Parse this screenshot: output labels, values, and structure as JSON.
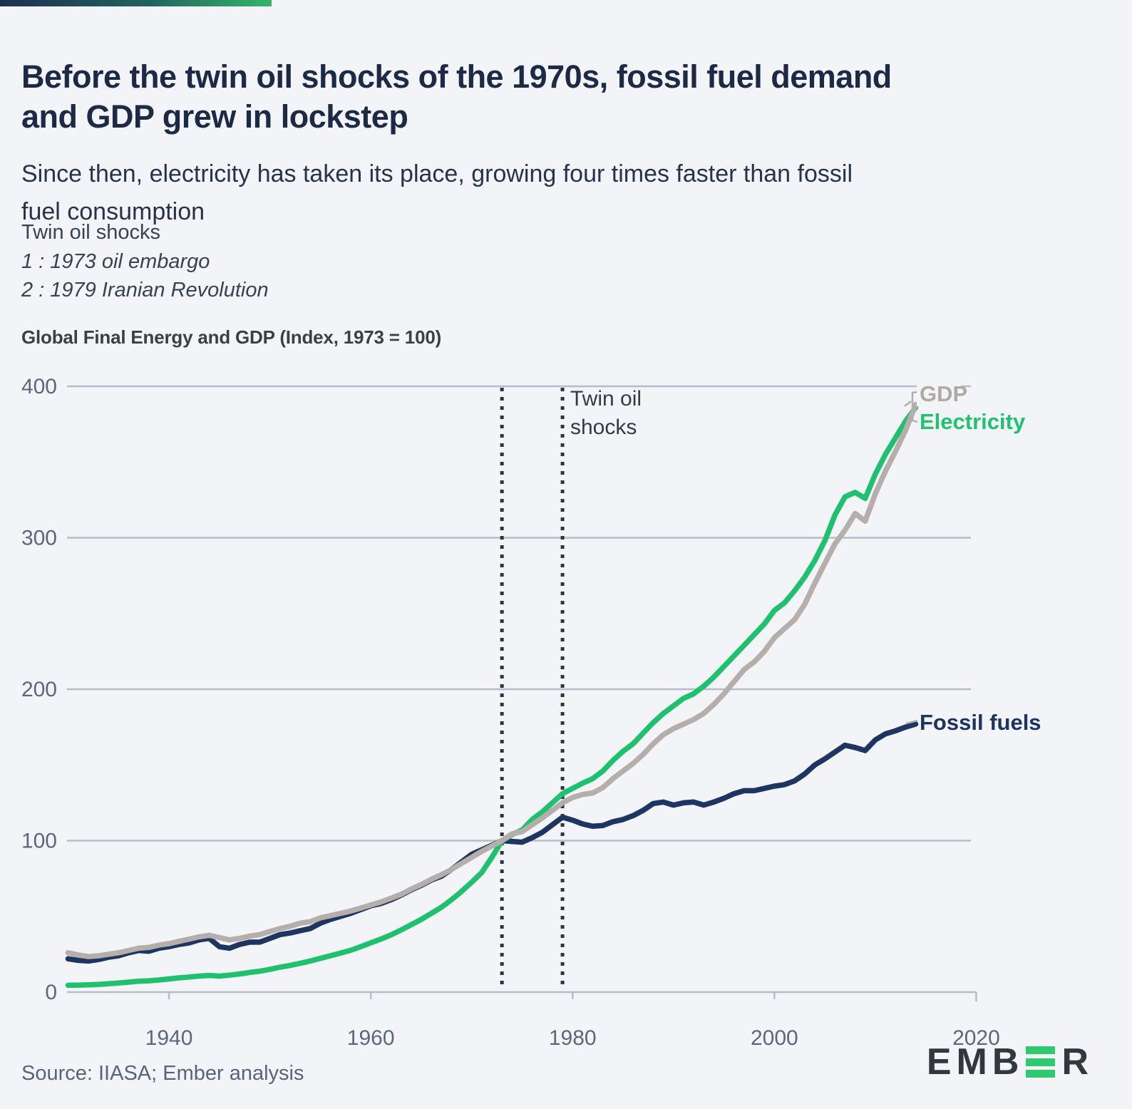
{
  "page": {
    "background": "#f2f4f7"
  },
  "brand_bar": {
    "gradient_start": "#1e2f50",
    "gradient_end": "#35b56a"
  },
  "header": {
    "title_line1": "Before the twin oil shocks of the 1970s, fossil fuel demand",
    "title_line2": "and GDP grew in lockstep",
    "subtitle_line1": "Since then, electricity has taken its place, growing four times faster than fossil",
    "subtitle_line2": "fuel consumption"
  },
  "notes": {
    "heading": "Twin oil shocks",
    "item1": "1 : 1973 oil embargo",
    "item2": "2 : 1979 Iranian Revolution"
  },
  "chart_data": {
    "type": "line",
    "heading": "Global Final Energy and GDP (Index, 1973 = 100)",
    "title": "Global Final Energy and GDP (Index, 1973 = 100)",
    "xlim": [
      1930,
      2020
    ],
    "ylim": [
      0,
      400
    ],
    "x_start_year": 1930,
    "x_ticks": [
      1940,
      1960,
      1980,
      2000,
      2020
    ],
    "y_ticks": [
      0,
      100,
      200,
      300,
      400
    ],
    "grid": "horizontal",
    "legend_position": "line-end-labels",
    "colors": {
      "background": "#f2f4f7",
      "grid": "#b6bcc9",
      "axis_label": "#5d6779",
      "shock_line": "#2f353f",
      "annotation_text": "#333b47",
      "connector": "#b5aeaa"
    },
    "annotations": {
      "shock_years": [
        1973,
        1979
      ],
      "shock_label_line1": "Twin oil",
      "shock_label_line2": "shocks"
    },
    "series": [
      {
        "name": "Fossil fuels",
        "color": "#1e3562",
        "label_color": "#1d3360",
        "values": [
          22,
          21,
          20.5,
          21.5,
          23,
          24,
          26,
          27.5,
          27,
          29,
          30,
          31.5,
          32.5,
          34.5,
          35.5,
          30,
          29,
          31.5,
          33,
          33,
          35.5,
          38,
          39,
          40.5,
          42,
          45.5,
          48,
          50,
          52,
          54.5,
          57,
          58.5,
          61,
          64,
          67.5,
          70.5,
          74,
          76.5,
          81,
          86,
          91,
          94,
          97,
          100,
          99.5,
          99,
          102,
          105.5,
          110.5,
          115.5,
          113.5,
          111,
          109.5,
          110,
          112.5,
          114,
          116.5,
          120,
          124.5,
          125.5,
          123.5,
          125,
          125.5,
          123.5,
          125.5,
          128,
          131,
          133,
          133,
          134.5,
          136,
          137,
          139.5,
          144,
          150,
          154,
          158.5,
          163,
          161.5,
          159.5,
          166.5,
          170.5,
          172.5,
          175,
          177
        ]
      },
      {
        "name": "Electricity",
        "color": "#20c16e",
        "label_color": "#1fc36f",
        "values": [
          4.5,
          4.6,
          4.8,
          5.1,
          5.5,
          6,
          6.6,
          7.2,
          7.5,
          8,
          8.7,
          9.4,
          10,
          10.6,
          11,
          10.6,
          11.2,
          12,
          13,
          13.8,
          15,
          16.4,
          17.6,
          19,
          20.5,
          22.3,
          24,
          25.8,
          27.6,
          30,
          32.5,
          35,
          37.8,
          41,
          44.5,
          48,
          52,
          56,
          61,
          66.5,
          72.5,
          79,
          89,
          100,
          104,
          107,
          114,
          119,
          125,
          131,
          134.5,
          138,
          141,
          146,
          153,
          159,
          164,
          171,
          178,
          184,
          189,
          194,
          197,
          202,
          208,
          215,
          222,
          229,
          236,
          243,
          252,
          257,
          265,
          274,
          285,
          298,
          315,
          327,
          330,
          326,
          342,
          355,
          366,
          377,
          386
        ]
      },
      {
        "name": "GDP",
        "color": "#b5aeaa",
        "label_color": "#b1a9a4",
        "values": [
          26,
          24.5,
          23.5,
          24,
          25,
          26,
          27.5,
          29,
          29.5,
          31,
          32,
          33.5,
          35,
          36.5,
          37.5,
          36,
          34.5,
          35.5,
          37,
          38,
          40,
          42,
          43.5,
          45.5,
          46.5,
          49,
          50.5,
          52,
          53.5,
          55.5,
          57.5,
          59.5,
          62,
          64.5,
          68,
          71,
          74.5,
          77.5,
          81,
          85,
          89,
          93,
          96.5,
          100,
          104.5,
          106,
          110.5,
          115,
          120,
          125,
          128.5,
          130.5,
          131.5,
          135,
          141,
          146,
          151,
          157,
          164,
          170,
          174,
          177,
          180,
          184,
          190,
          197,
          205,
          213,
          218,
          225,
          234,
          240,
          246,
          256,
          270,
          283,
          296,
          305,
          316,
          311,
          329,
          344,
          357,
          371,
          388
        ]
      }
    ]
  },
  "footer": {
    "source": "Source: IIASA; Ember analysis",
    "logo_left": "EMB",
    "logo_right": "R"
  }
}
